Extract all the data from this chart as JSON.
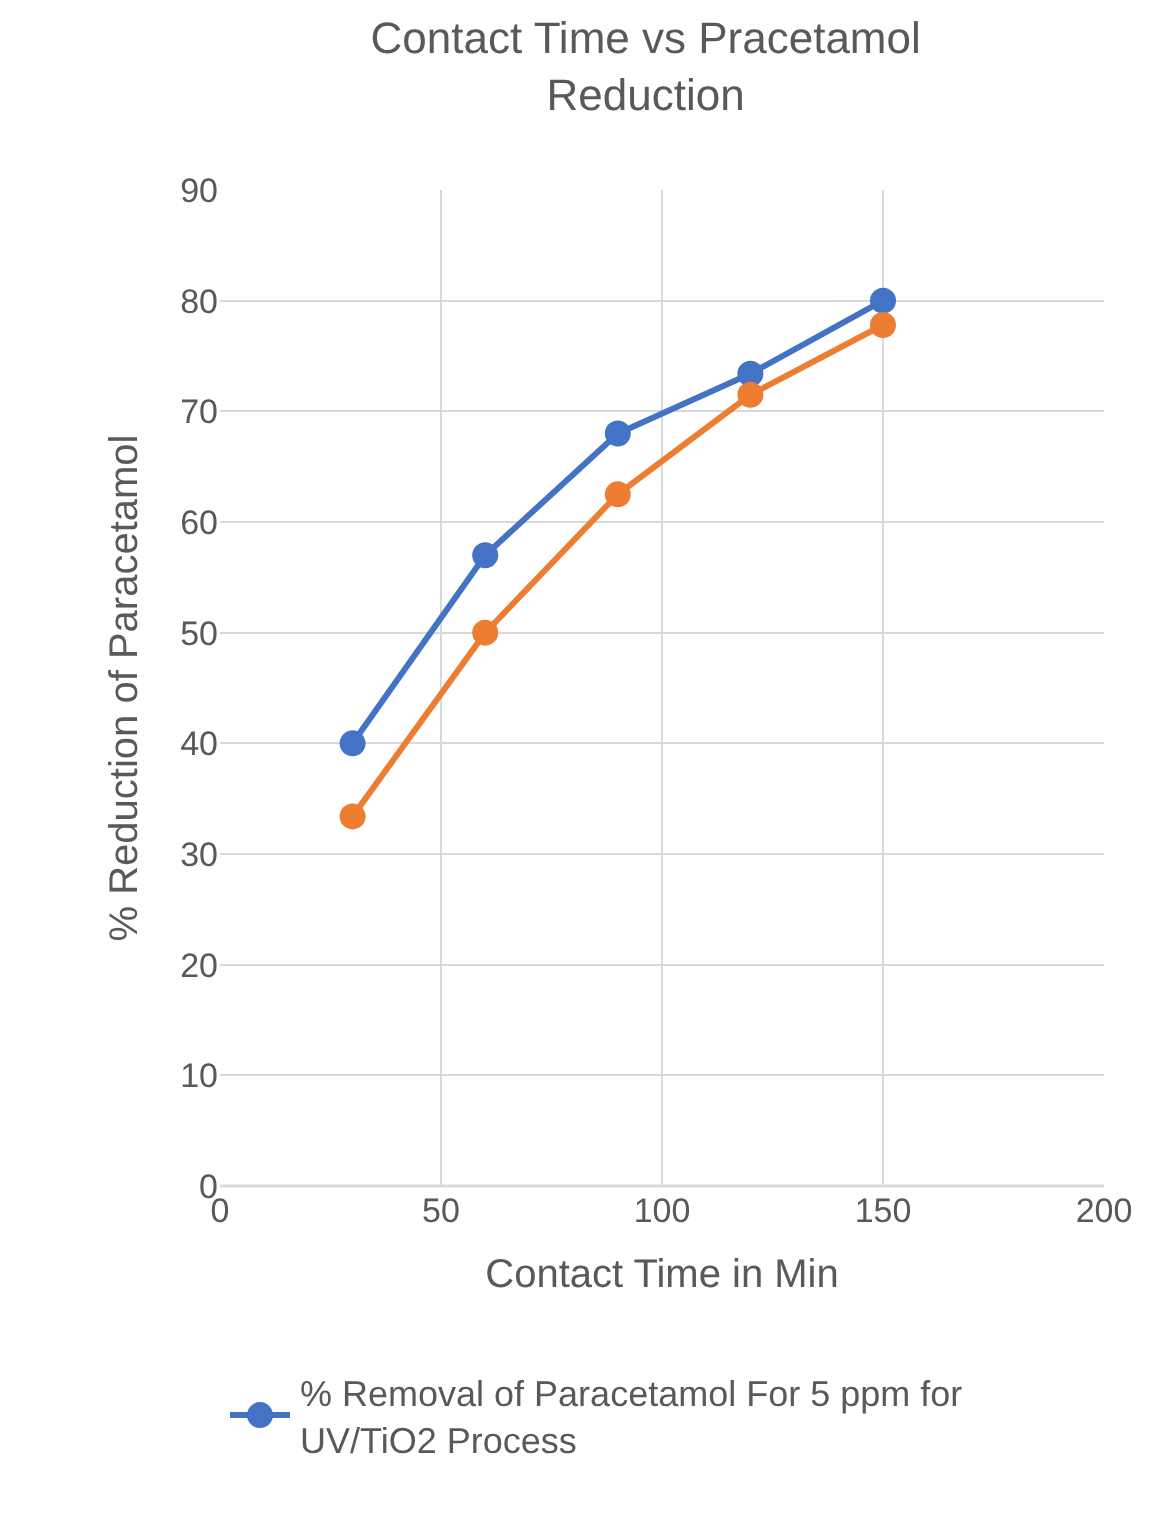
{
  "chart_data": {
    "type": "line",
    "title": "Contact Time vs Pracetamol Reduction",
    "xlabel": "Contact Time in Min",
    "ylabel": "% Reduction of Paracetamol",
    "x": [
      30,
      60,
      90,
      120,
      150
    ],
    "series": [
      {
        "name": "% Removal of Paracetamol For 5 ppm for UV/TiO2 Process",
        "color": "#4472c4",
        "values": [
          40,
          57,
          68,
          73.4,
          80
        ]
      },
      {
        "color": "#ed7d31",
        "values": [
          33.4,
          50,
          62.5,
          71.5,
          77.8
        ]
      }
    ],
    "xlim": [
      0,
      200
    ],
    "xticks": [
      0,
      50,
      100,
      150,
      200
    ],
    "ylim": [
      0,
      90
    ],
    "yticks": [
      0,
      10,
      20,
      30,
      40,
      50,
      60,
      70,
      80,
      90
    ],
    "grid": true,
    "legend": "bottom",
    "marker": "circle",
    "line_style": "solid"
  }
}
